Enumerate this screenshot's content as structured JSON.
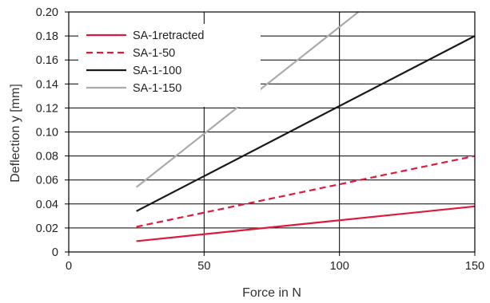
{
  "chart_data": {
    "type": "line",
    "xlabel": "Force in N",
    "ylabel": "Deflection y  [mm]",
    "xlim": [
      0,
      150
    ],
    "ylim": [
      0,
      0.2
    ],
    "x_ticks": [
      "0",
      "50",
      "100",
      "150"
    ],
    "y_ticks": [
      "0",
      "0.02",
      "0.04",
      "0.06",
      "0.08",
      "0.10",
      "0.12",
      "0.14",
      "0.16",
      "0.18",
      "0.20"
    ],
    "grid": true,
    "legend_position": "top-left",
    "series": [
      {
        "name": "SA-1retracted",
        "color": "#e0193b",
        "dash": "solid",
        "x": [
          25,
          150
        ],
        "y": [
          0.009,
          0.038
        ]
      },
      {
        "name": "SA-1-50",
        "color": "#e0193b",
        "dash": "dashed",
        "x": [
          25,
          150
        ],
        "y": [
          0.021,
          0.08
        ]
      },
      {
        "name": "SA-1-100",
        "color": "#1a1a1a",
        "dash": "solid",
        "x": [
          25,
          150
        ],
        "y": [
          0.034,
          0.18
        ]
      },
      {
        "name": "SA-1-150",
        "color": "#aaaaaa",
        "dash": "solid",
        "x": [
          25,
          107
        ],
        "y": [
          0.054,
          0.2
        ]
      }
    ]
  }
}
